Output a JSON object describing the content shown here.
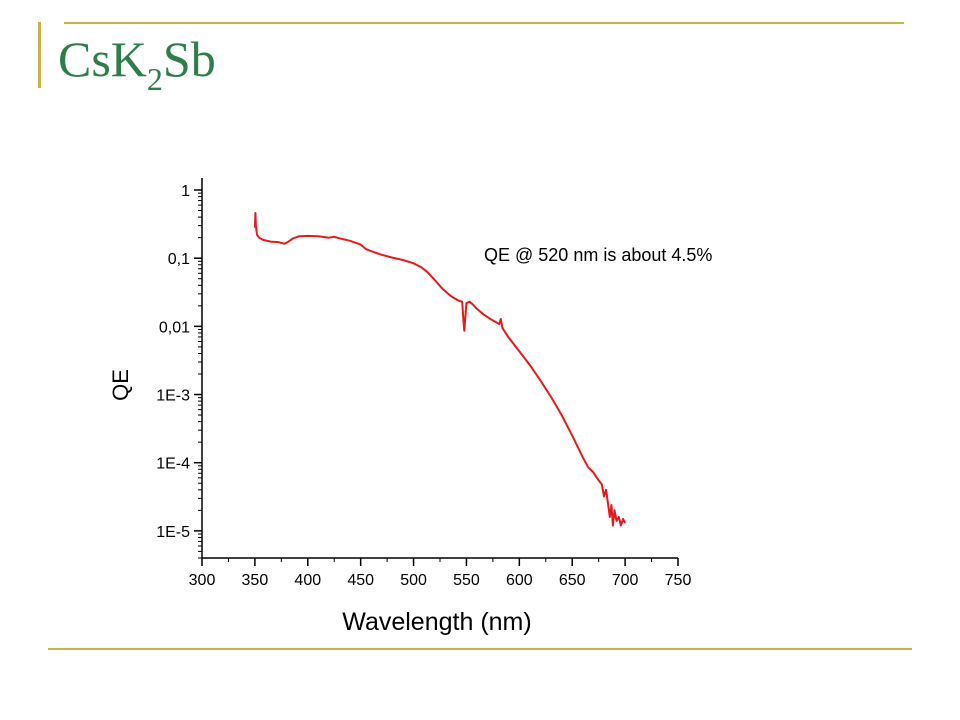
{
  "slide": {
    "title_main": "CsK",
    "title_sub": "2",
    "title_end": "Sb",
    "accent_color": "#c9b24a",
    "title_color": "#2e7d4a"
  },
  "chart_data": {
    "type": "line",
    "xlabel": "Wavelength (nm)",
    "ylabel": "QE",
    "xlim": [
      300,
      750
    ],
    "ylim": [
      4e-06,
      1.5
    ],
    "yscale": "log",
    "grid": false,
    "x_ticks": [
      300,
      350,
      400,
      450,
      500,
      550,
      600,
      650,
      700,
      750
    ],
    "y_ticks": [
      {
        "value": 1,
        "label": "1"
      },
      {
        "value": 0.1,
        "label": "0,1"
      },
      {
        "value": 0.01,
        "label": "0,01"
      },
      {
        "value": 0.001,
        "label": "1E-3"
      },
      {
        "value": 0.0001,
        "label": "1E-4"
      },
      {
        "value": 1e-05,
        "label": "1E-5"
      }
    ],
    "annotation": "QE @ 520 nm is about 4.5%",
    "series": [
      {
        "color": "#e8191b",
        "points": [
          [
            350.0,
            0.28
          ],
          [
            350.5,
            0.46
          ],
          [
            351.0,
            0.3
          ],
          [
            352.0,
            0.22
          ],
          [
            354.0,
            0.2
          ],
          [
            358.0,
            0.185
          ],
          [
            365.0,
            0.175
          ],
          [
            372.0,
            0.172
          ],
          [
            378.0,
            0.163
          ],
          [
            381.0,
            0.172
          ],
          [
            386.0,
            0.195
          ],
          [
            392.0,
            0.21
          ],
          [
            400.0,
            0.212
          ],
          [
            410.0,
            0.21
          ],
          [
            420.0,
            0.2
          ],
          [
            425.0,
            0.206
          ],
          [
            430.0,
            0.196
          ],
          [
            440.0,
            0.18
          ],
          [
            450.0,
            0.158
          ],
          [
            455.0,
            0.136
          ],
          [
            462.0,
            0.123
          ],
          [
            470.0,
            0.112
          ],
          [
            480.0,
            0.102
          ],
          [
            490.0,
            0.094
          ],
          [
            500.0,
            0.084
          ],
          [
            507.0,
            0.074
          ],
          [
            513.0,
            0.063
          ],
          [
            520.0,
            0.048
          ],
          [
            527.0,
            0.036
          ],
          [
            535.0,
            0.028
          ],
          [
            542.0,
            0.024
          ],
          [
            546.0,
            0.023
          ],
          [
            547.0,
            0.013
          ],
          [
            548.0,
            0.0086
          ],
          [
            549.0,
            0.014
          ],
          [
            550.0,
            0.022
          ],
          [
            553.0,
            0.023
          ],
          [
            556.0,
            0.021
          ],
          [
            560.0,
            0.018
          ],
          [
            566.0,
            0.015
          ],
          [
            572.0,
            0.013
          ],
          [
            578.0,
            0.0115
          ],
          [
            581.0,
            0.0108
          ],
          [
            582.5,
            0.0128
          ],
          [
            584.0,
            0.0095
          ],
          [
            590.0,
            0.0068
          ],
          [
            600.0,
            0.0043
          ],
          [
            610.0,
            0.0027
          ],
          [
            620.0,
            0.0016
          ],
          [
            630.0,
            0.00092
          ],
          [
            640.0,
            0.0005
          ],
          [
            650.0,
            0.00025
          ],
          [
            660.0,
            0.00012
          ],
          [
            665.0,
            8.6e-05
          ],
          [
            670.0,
            7.2e-05
          ],
          [
            675.0,
            5.5e-05
          ],
          [
            678.0,
            4.8e-05
          ],
          [
            680.0,
            3.2e-05
          ],
          [
            682.0,
            4e-05
          ],
          [
            684.0,
            2.4e-05
          ],
          [
            685.5,
            1.6e-05
          ],
          [
            687.0,
            2.4e-05
          ],
          [
            688.5,
            1.2e-05
          ],
          [
            690.0,
            2e-05
          ],
          [
            692.0,
            1.4e-05
          ],
          [
            694.0,
            1.6e-05
          ],
          [
            696.0,
            1.2e-05
          ],
          [
            698.0,
            1.5e-05
          ],
          [
            700.0,
            1.3e-05
          ]
        ]
      }
    ]
  }
}
